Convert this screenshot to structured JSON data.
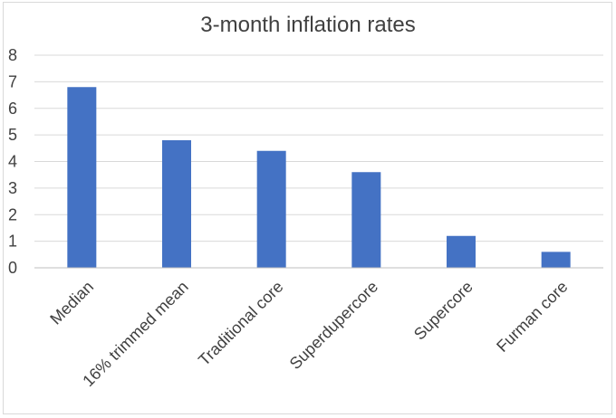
{
  "chart_data": {
    "type": "bar",
    "title": "3-month inflation rates",
    "xlabel": "",
    "ylabel": "",
    "categories": [
      "Median",
      "16% trimmed mean",
      "Traditional core",
      "Superdupercore",
      "Supercore",
      "Furman core"
    ],
    "values": [
      6.8,
      4.8,
      4.4,
      3.6,
      1.2,
      0.6
    ],
    "ylim": [
      0,
      8
    ],
    "yticks": [
      0,
      1,
      2,
      3,
      4,
      5,
      6,
      7,
      8
    ],
    "grid": true,
    "legend": "none",
    "bar_color": "#4472c4"
  }
}
